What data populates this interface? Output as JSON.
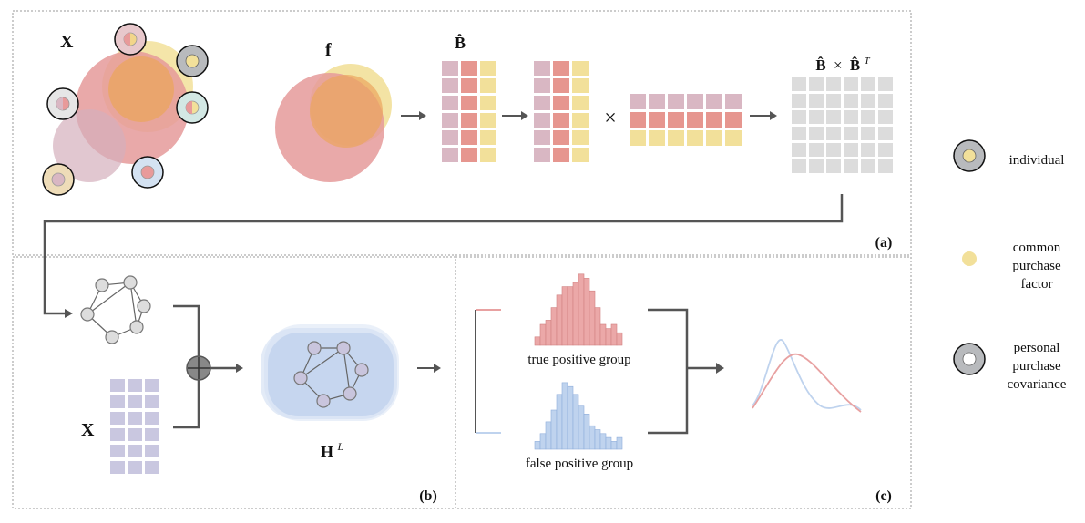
{
  "panel_a": {
    "tag": "(a)",
    "x_label": "X",
    "f_label": "f",
    "b_hat_label": "B̂",
    "times_symbol": "×",
    "product_label_b": "B̂",
    "product_label_times": "×",
    "product_label_bt": "B̂",
    "product_label_sup": "T"
  },
  "panel_b": {
    "tag": "(b)",
    "x_label": "X",
    "h_label": "H",
    "h_sup": "L"
  },
  "panel_c": {
    "tag": "(c)",
    "true_group": "true positive group",
    "false_group": "false positive group"
  },
  "legend": {
    "individual": "individual",
    "common": [
      "common",
      "purchase",
      "factor"
    ],
    "personal": [
      "personal",
      "purchase",
      "covariance"
    ]
  },
  "colors": {
    "pink": "#E8A1A1",
    "salmon": "#E6968F",
    "mauve": "#D9B7C3",
    "yellow": "#F2E09A",
    "orange": "#EBA55E",
    "blue": "#BFD3EE",
    "lavender": "#C9C7E0",
    "gray": "#DCDCDC",
    "dark": "#555555"
  },
  "histograms": {
    "true_positive": [
      2,
      5,
      6,
      9,
      12,
      14,
      14,
      15,
      17,
      16,
      13,
      9,
      5,
      4,
      5,
      3
    ],
    "false_positive": [
      2,
      4,
      7,
      10,
      14,
      17,
      16,
      14,
      11,
      9,
      6,
      5,
      4,
      3,
      2,
      3
    ]
  }
}
